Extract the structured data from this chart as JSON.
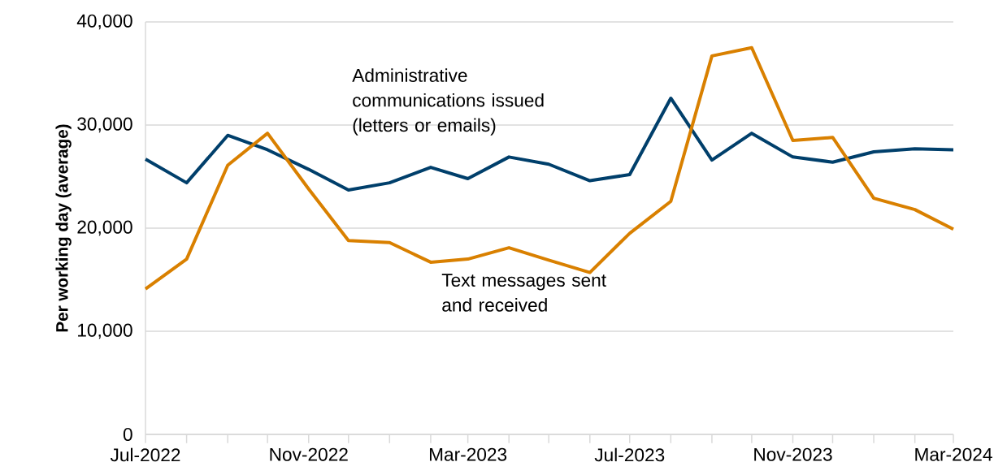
{
  "chart_data": {
    "type": "line",
    "ylabel": "Per working day (average)",
    "x": [
      "2022-07",
      "2022-08",
      "2022-09",
      "2022-10",
      "2022-11",
      "2022-12",
      "2023-01",
      "2023-02",
      "2023-03",
      "2023-04",
      "2023-05",
      "2023-06",
      "2023-07",
      "2023-08",
      "2023-09",
      "2023-10",
      "2023-11",
      "2023-12",
      "2024-01",
      "2024-02",
      "2024-03"
    ],
    "series": [
      {
        "name": "Administrative communications issued (letters or emails)",
        "color": "#003f6b",
        "values": [
          26700,
          24400,
          29000,
          27600,
          25700,
          23700,
          24400,
          25900,
          24800,
          26900,
          26200,
          24600,
          25200,
          32600,
          26600,
          29200,
          26900,
          26400,
          27400,
          27700,
          27600
        ]
      },
      {
        "name": "Text messages sent and received",
        "color": "#d98000",
        "values": [
          14100,
          17000,
          26100,
          29200,
          23800,
          18800,
          18600,
          16700,
          17000,
          18100,
          16900,
          15700,
          19500,
          22600,
          36700,
          37500,
          28500,
          28800,
          22900,
          21800,
          19900
        ]
      }
    ],
    "xlim": [
      "2022-07",
      "2024-03"
    ],
    "xticks": [
      {
        "value": "2022-07",
        "label": "Jul-2022"
      },
      {
        "value": "2022-08",
        "label": null
      },
      {
        "value": "2022-09",
        "label": null
      },
      {
        "value": "2022-10",
        "label": null
      },
      {
        "value": "2022-11",
        "label": "Nov-2022"
      },
      {
        "value": "2022-12",
        "label": null
      },
      {
        "value": "2023-01",
        "label": null
      },
      {
        "value": "2023-02",
        "label": null
      },
      {
        "value": "2023-03",
        "label": "Mar-2023"
      },
      {
        "value": "2023-04",
        "label": null
      },
      {
        "value": "2023-05",
        "label": null
      },
      {
        "value": "2023-06",
        "label": null
      },
      {
        "value": "2023-07",
        "label": "Jul-2023"
      },
      {
        "value": "2023-08",
        "label": null
      },
      {
        "value": "2023-09",
        "label": null
      },
      {
        "value": "2023-10",
        "label": null
      },
      {
        "value": "2023-11",
        "label": "Nov-2023"
      },
      {
        "value": "2023-12",
        "label": null
      },
      {
        "value": "2024-01",
        "label": null
      },
      {
        "value": "2024-02",
        "label": null
      },
      {
        "value": "2024-03",
        "label": "Mar-2024"
      }
    ],
    "ylim": [
      0,
      40000
    ],
    "yticks": [
      {
        "value": 0,
        "label": "0"
      },
      {
        "value": 10000,
        "label": "10,000"
      },
      {
        "value": 20000,
        "label": "20,000"
      },
      {
        "value": 30000,
        "label": "30,000"
      },
      {
        "value": 40000,
        "label": "40,000"
      }
    ],
    "grid": "y",
    "line_style": "solid"
  }
}
